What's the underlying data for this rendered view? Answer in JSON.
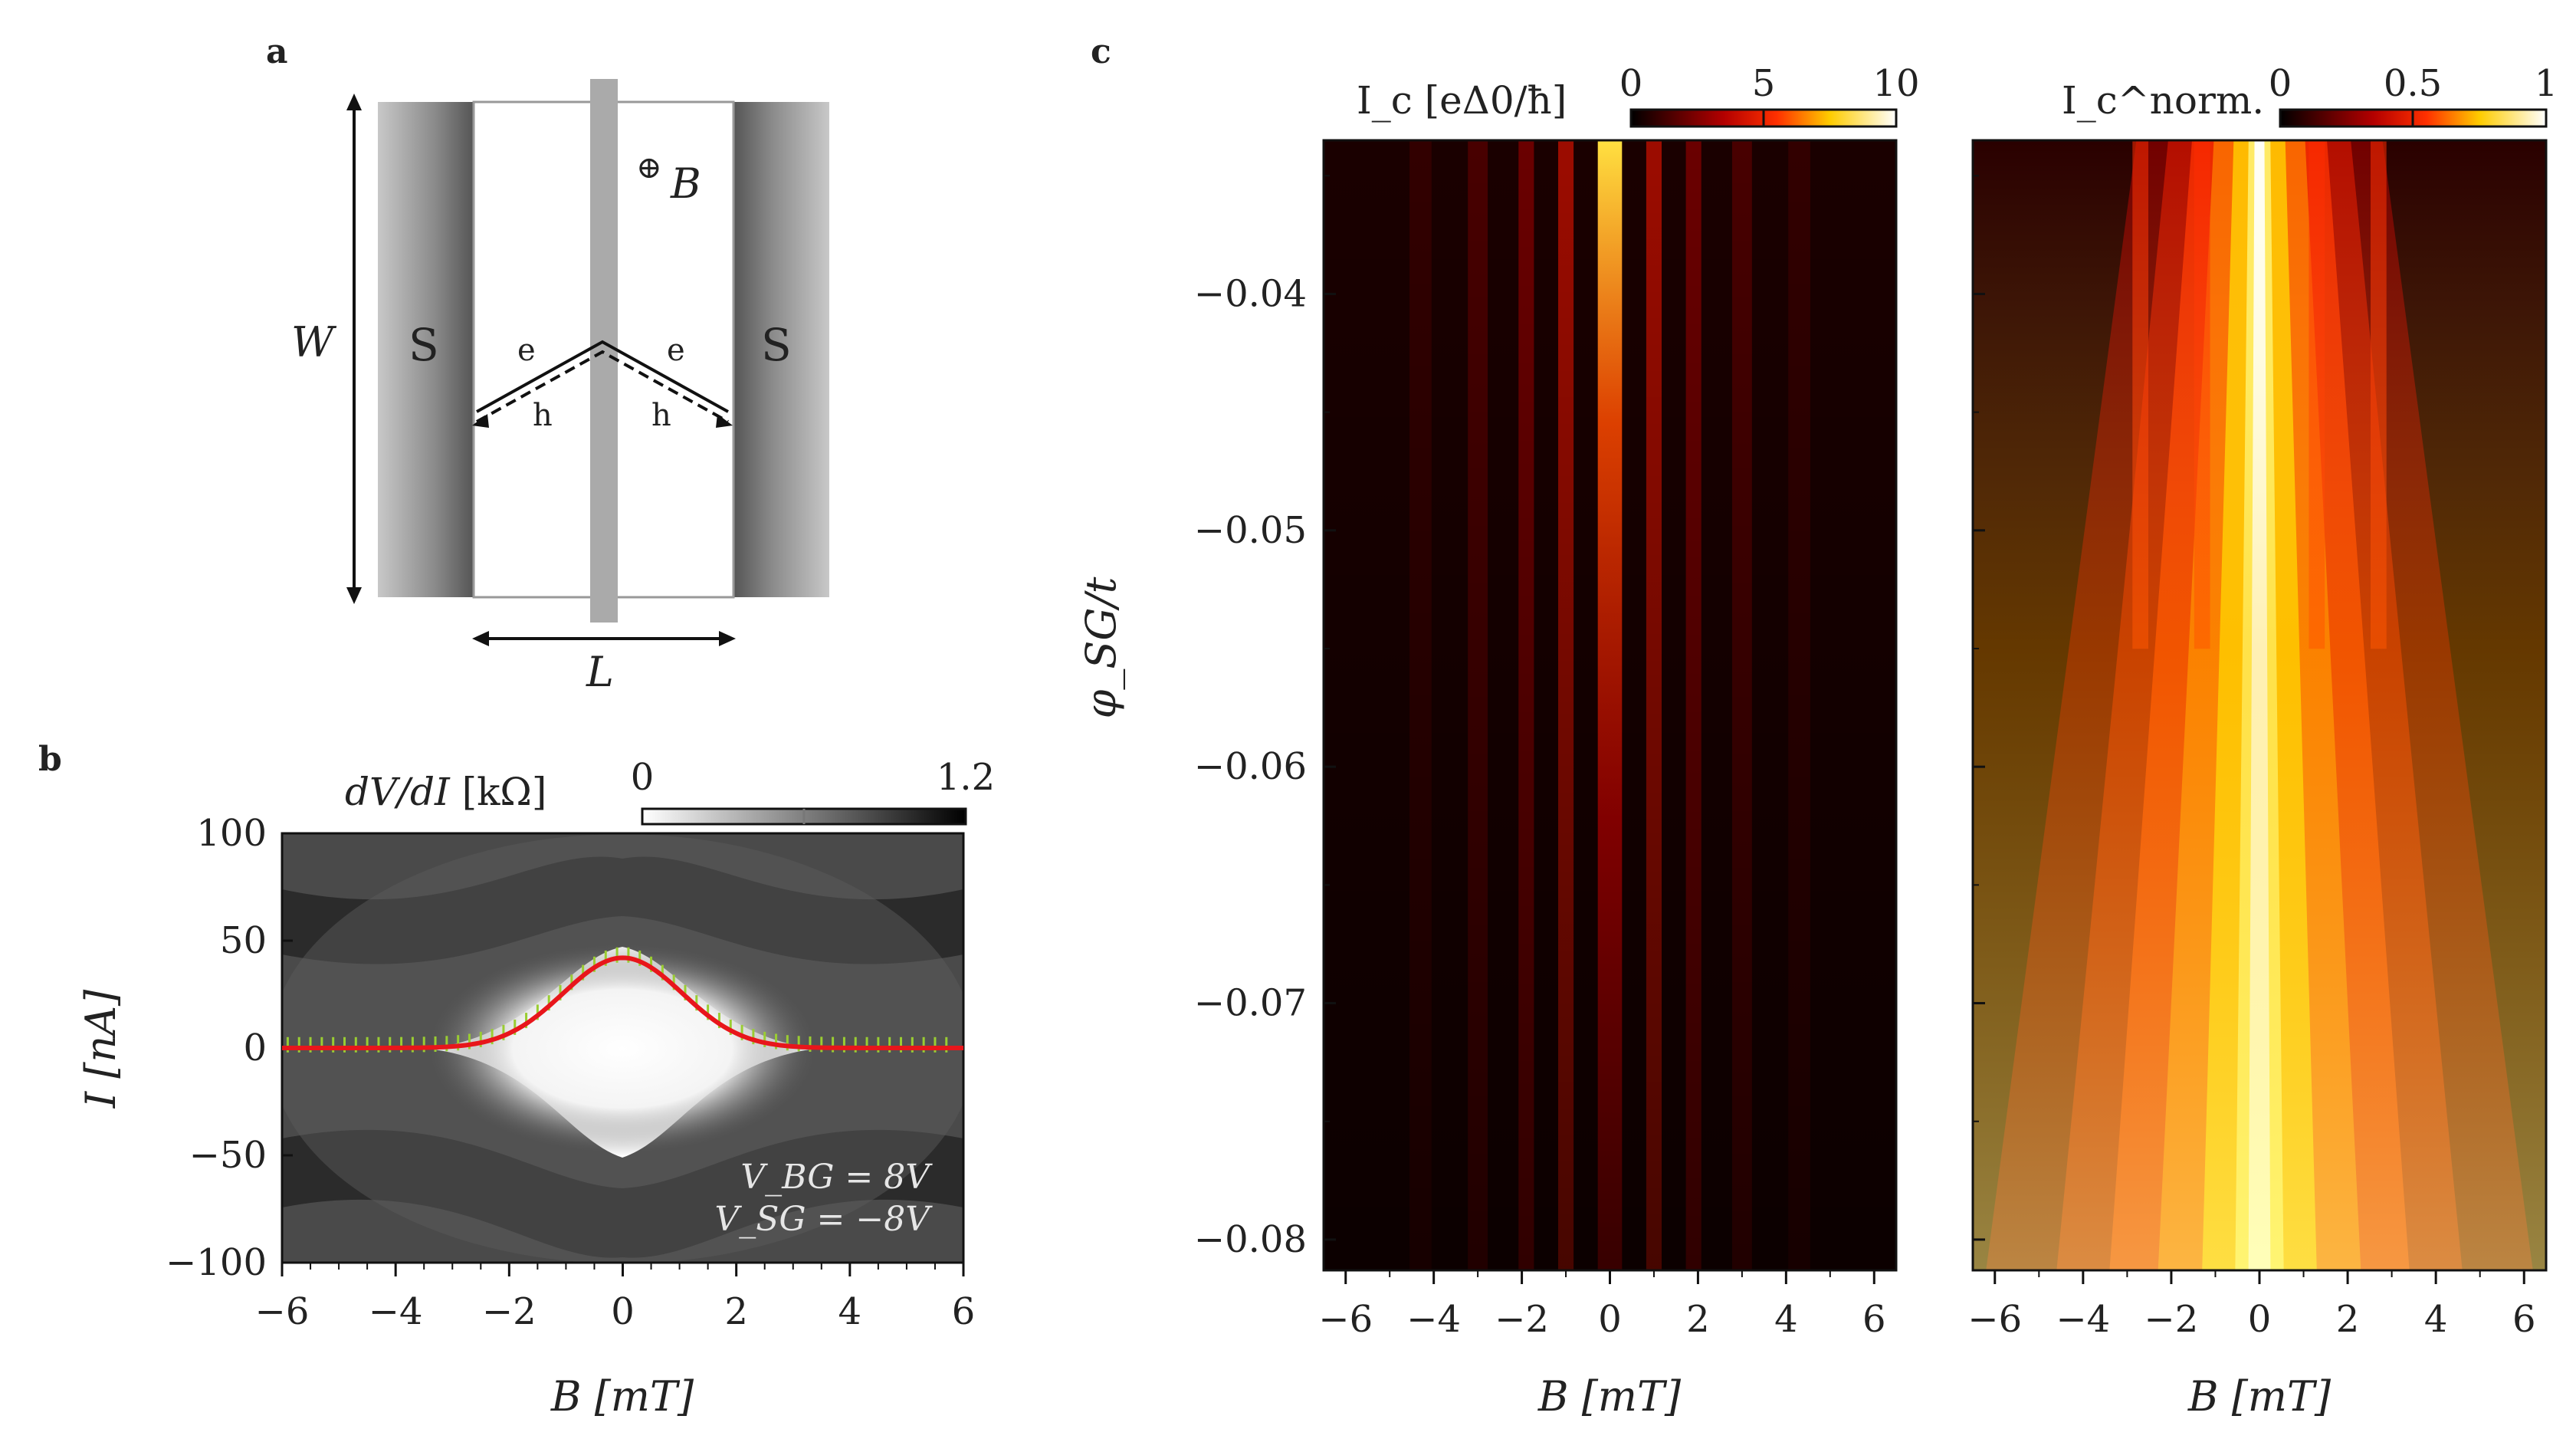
{
  "panels": {
    "a": {
      "letter": "a",
      "labels": {
        "field": "B",
        "width": "W",
        "length": "L",
        "sc_left": "S",
        "sc_right": "S",
        "electron": "e",
        "hole": "h"
      }
    },
    "b": {
      "letter": "b",
      "colorbar": {
        "title_var": "dV/dI",
        "title_unit": "[kΩ]",
        "min_label": "0",
        "max_label": "1.2"
      },
      "annotation": {
        "vbg": "V_BG = 8V",
        "vsg": "V_SG = −8V"
      }
    },
    "c": {
      "letter": "c",
      "yaxis": {
        "label": "φ_SG/t",
        "ticks": [
          "−0.04",
          "−0.05",
          "−0.06",
          "−0.07",
          "−0.08"
        ]
      },
      "left_colorbar": {
        "title": "I_c [eΔ0/ħ]",
        "ticks": [
          "0",
          "5",
          "10"
        ]
      },
      "right_colorbar": {
        "title": "I_c^norm.",
        "ticks": [
          "0",
          "0.5",
          "1"
        ]
      }
    }
  },
  "chart_data": [
    {
      "type": "heatmap",
      "panel": "b",
      "xlabel": "B [mT]",
      "ylabel": "I [nA]",
      "xlim": [
        -6,
        6
      ],
      "ylim": [
        -100,
        100
      ],
      "xticks": [
        "−6",
        "−4",
        "−2",
        "0",
        "2",
        "4",
        "6"
      ],
      "yticks": [
        "100",
        "50",
        "0",
        "−50",
        "−100"
      ],
      "colorbar_range": [
        0,
        1.2
      ],
      "overlay_line": {
        "color": "#e8161b",
        "description": "critical current Ic(B)",
        "peak_nA": 42,
        "baseline_nA": 0
      }
    },
    {
      "type": "heatmap",
      "panel": "c-left",
      "xlabel": "B [mT]",
      "ylabel": "φ_SG/t",
      "xlim": [
        -6.5,
        6.5
      ],
      "ylim": [
        -0.0813,
        -0.0335
      ],
      "xticks": [
        "−6",
        "−4",
        "−2",
        "0",
        "2",
        "4",
        "6"
      ],
      "colorbar_range": [
        0,
        10
      ],
      "colormap": "hot"
    },
    {
      "type": "heatmap",
      "panel": "c-right",
      "xlabel": "B [mT]",
      "ylabel": "φ_SG/t",
      "xlim": [
        -6.5,
        6.5
      ],
      "ylim": [
        -0.0813,
        -0.0335
      ],
      "xticks": [
        "−6",
        "−4",
        "−2",
        "0",
        "2",
        "4",
        "6"
      ],
      "colorbar_range": [
        0,
        1
      ],
      "colormap": "hot"
    }
  ]
}
